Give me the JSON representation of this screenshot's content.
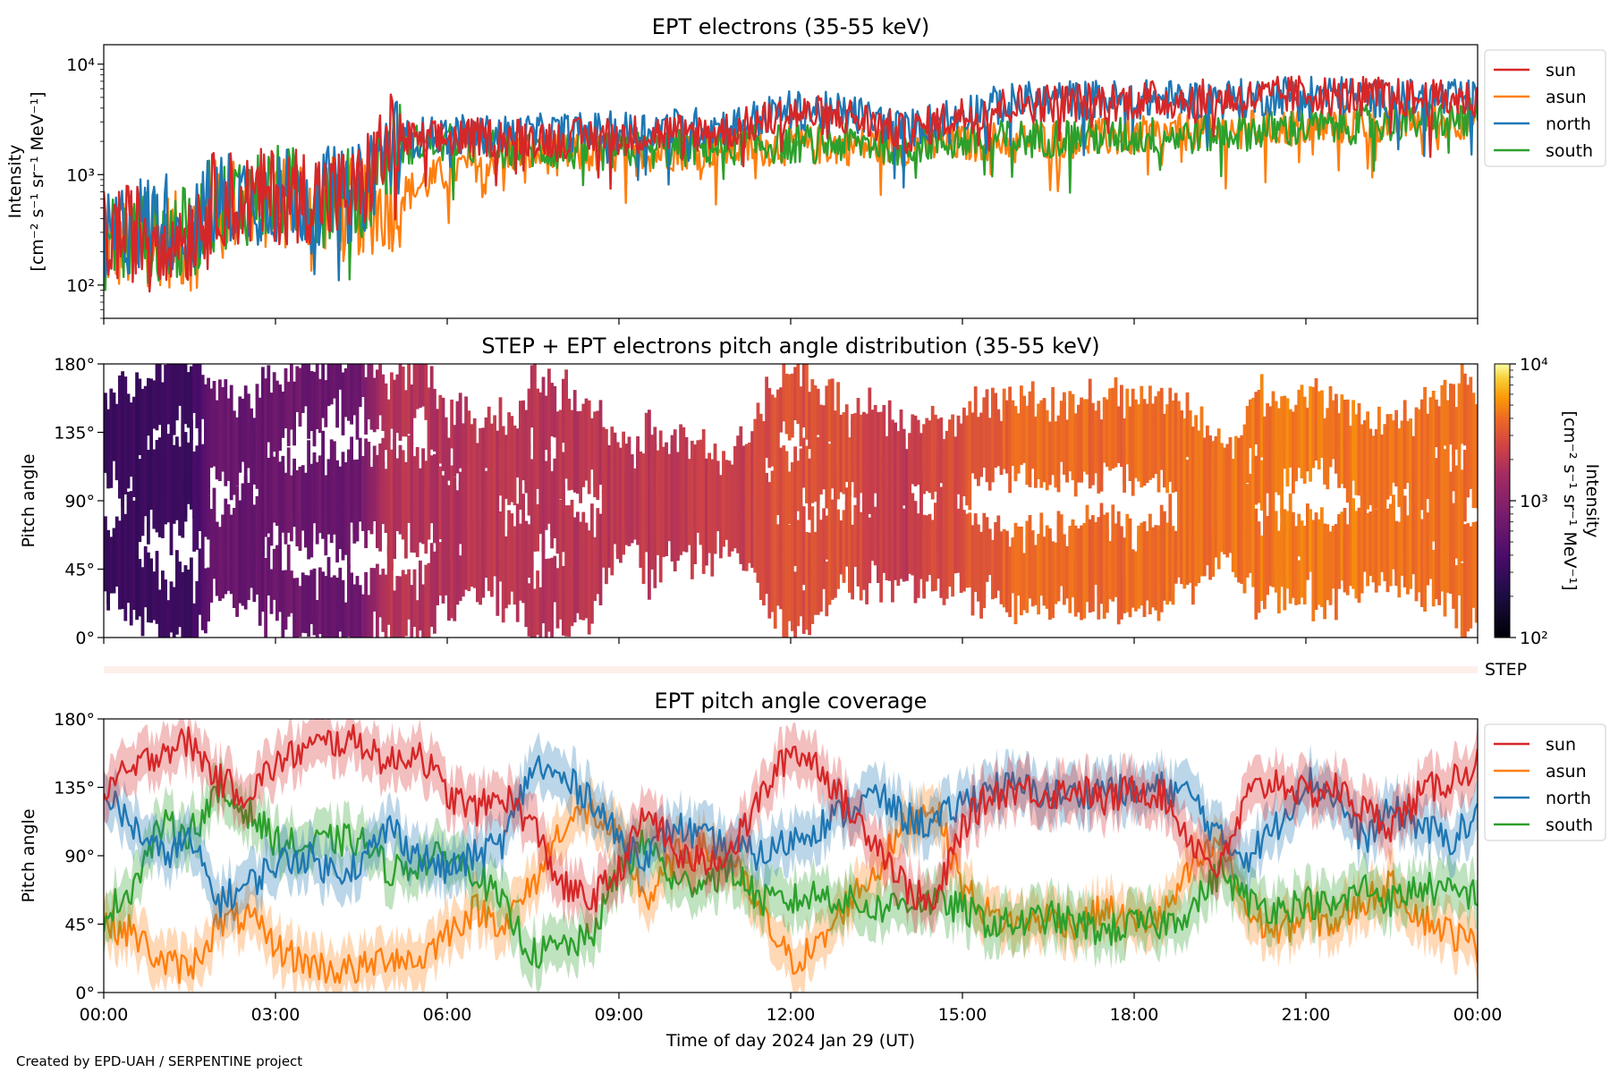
{
  "footer": "Created by EPD-UAH / SERPENTINE project",
  "colors": {
    "sun": "#d62728",
    "asun": "#ff7f0e",
    "north": "#1f77b4",
    "south": "#2ca02c",
    "step_bar": "#fdf0ea"
  },
  "chart_data": [
    {
      "type": "line",
      "title": "EPT electrons (35-55 keV)",
      "ylabel": [
        "Intensity",
        "[cm⁻² s⁻¹ sr⁻¹ MeV⁻¹]"
      ],
      "yscale": "log",
      "ylim": [
        50,
        15000
      ],
      "yticks": [
        100,
        1000,
        10000
      ],
      "ytick_labels": [
        "10²",
        "10³",
        "10⁴"
      ],
      "x_unit": "hours",
      "xlim": [
        0,
        24
      ],
      "legend": {
        "placement": "outside-right-top",
        "entries": [
          "sun",
          "asun",
          "north",
          "south"
        ]
      },
      "series": [
        {
          "name": "sun",
          "color": "#d62728",
          "x": [
            0,
            0.5,
            1,
            1.5,
            2,
            2.5,
            3,
            3.5,
            4,
            4.5,
            5,
            5.5,
            6,
            7,
            8,
            9,
            10,
            11,
            12,
            13,
            14,
            15,
            16,
            17,
            18,
            19,
            20,
            21,
            22,
            23,
            24
          ],
          "y": [
            300,
            330,
            350,
            320,
            700,
            650,
            720,
            750,
            700,
            750,
            2200,
            2100,
            2200,
            2300,
            2200,
            2400,
            2500,
            2600,
            3700,
            3500,
            2400,
            3600,
            4600,
            4700,
            4900,
            5000,
            5100,
            5600,
            5400,
            5000,
            5000
          ]
        },
        {
          "name": "asun",
          "color": "#ff7f0e",
          "x": [
            0,
            0.5,
            1,
            1.5,
            2,
            2.5,
            3,
            3.5,
            4,
            4.5,
            5,
            5.5,
            6,
            7,
            8,
            9,
            10,
            11,
            12,
            13,
            14,
            15,
            16,
            17,
            18,
            19,
            20,
            21,
            22,
            23,
            24
          ],
          "y": [
            260,
            250,
            300,
            260,
            600,
            600,
            650,
            650,
            600,
            550,
            600,
            800,
            1100,
            1600,
            1600,
            1600,
            1700,
            1800,
            1900,
            1900,
            1900,
            2000,
            2200,
            2200,
            2300,
            2500,
            2700,
            2800,
            3000,
            3200,
            3300
          ]
        },
        {
          "name": "north",
          "color": "#1f77b4",
          "x": [
            0,
            0.5,
            1,
            1.5,
            2,
            2.5,
            3,
            3.5,
            4,
            4.5,
            5,
            5.5,
            6,
            7,
            8,
            9,
            10,
            11,
            12,
            13,
            14,
            15,
            16,
            17,
            18,
            19,
            20,
            21,
            22,
            23,
            24
          ],
          "y": [
            250,
            400,
            450,
            380,
            650,
            700,
            700,
            700,
            720,
            750,
            2000,
            2300,
            2400,
            2400,
            2500,
            2600,
            2800,
            2900,
            4000,
            3800,
            2600,
            3800,
            4800,
            5000,
            5000,
            5000,
            5100,
            5800,
            5200,
            5000,
            5000
          ]
        },
        {
          "name": "south",
          "color": "#2ca02c",
          "x": [
            0,
            0.5,
            1,
            1.5,
            2,
            2.5,
            3,
            3.5,
            4,
            4.5,
            5,
            5.5,
            6,
            7,
            8,
            9,
            10,
            11,
            12,
            13,
            14,
            15,
            16,
            17,
            18,
            19,
            20,
            21,
            22,
            23,
            24
          ],
          "y": [
            270,
            300,
            330,
            300,
            650,
            700,
            750,
            700,
            680,
            700,
            1800,
            2000,
            2000,
            1800,
            1700,
            1700,
            1800,
            1900,
            2000,
            2000,
            2000,
            2100,
            2200,
            2300,
            2300,
            2400,
            2600,
            2800,
            3000,
            3200,
            3400
          ]
        }
      ]
    },
    {
      "type": "heatmap",
      "title": "STEP + EPT electrons pitch angle distribution (35-55 keV)",
      "ylabel": "Pitch angle",
      "ylim": [
        0,
        180
      ],
      "yticks": [
        0,
        45,
        90,
        135,
        180
      ],
      "ytick_labels": [
        "0°",
        "45°",
        "90°",
        "135°",
        "180°"
      ],
      "xlim": [
        0,
        24
      ],
      "colorbar": {
        "label": "Intensity",
        "units": "[cm⁻² s⁻¹ sr⁻¹ MeV⁻¹]",
        "scale": "log",
        "range": [
          100,
          10000
        ],
        "tick_labels": [
          "10²",
          "10³",
          "10⁴"
        ],
        "colormap": "inferno"
      },
      "step_label": "STEP"
    },
    {
      "type": "line",
      "title": "EPT pitch angle coverage",
      "ylabel": "Pitch angle",
      "xlabel": "Time of day 2024 Jan 29 (UT)",
      "ylim": [
        0,
        180
      ],
      "yticks": [
        0,
        45,
        90,
        135,
        180
      ],
      "ytick_labels": [
        "0°",
        "45°",
        "90°",
        "135°",
        "180°"
      ],
      "xlim": [
        0,
        24
      ],
      "xticks": [
        0,
        3,
        6,
        9,
        12,
        15,
        18,
        21,
        24
      ],
      "xtick_labels": [
        "00:00",
        "03:00",
        "06:00",
        "09:00",
        "12:00",
        "15:00",
        "18:00",
        "21:00",
        "00:00"
      ],
      "legend": {
        "placement": "outside-right-top",
        "entries": [
          "sun",
          "asun",
          "north",
          "south"
        ]
      },
      "series": [
        {
          "name": "sun",
          "color": "#d62728",
          "x": [
            0,
            0.5,
            1,
            1.5,
            2,
            2.5,
            3,
            3.5,
            4,
            4.5,
            5,
            5.5,
            6,
            6.5,
            7,
            7.5,
            8,
            8.5,
            9,
            9.5,
            10,
            10.5,
            11,
            11.5,
            12,
            12.5,
            13,
            13.5,
            14,
            14.5,
            15,
            15.5,
            16,
            16.5,
            17,
            17.5,
            18,
            18.5,
            19,
            19.5,
            20,
            20.5,
            21,
            21.5,
            22,
            22.5,
            23,
            23.5,
            24
          ],
          "y": [
            135,
            145,
            160,
            165,
            140,
            130,
            150,
            160,
            165,
            165,
            150,
            160,
            130,
            120,
            130,
            110,
            70,
            60,
            80,
            120,
            90,
            85,
            95,
            130,
            160,
            150,
            120,
            100,
            70,
            55,
            110,
            130,
            135,
            130,
            135,
            125,
            135,
            130,
            100,
            80,
            130,
            140,
            130,
            135,
            120,
            110,
            130,
            140,
            150
          ]
        },
        {
          "name": "asun",
          "color": "#ff7f0e",
          "x": [
            0,
            0.5,
            1,
            1.5,
            2,
            2.5,
            3,
            3.5,
            4,
            4.5,
            5,
            5.5,
            6,
            6.5,
            7,
            7.5,
            8,
            8.5,
            9,
            9.5,
            10,
            10.5,
            11,
            11.5,
            12,
            12.5,
            13,
            13.5,
            14,
            14.5,
            15,
            15.5,
            16,
            16.5,
            17,
            17.5,
            18,
            18.5,
            19,
            19.5,
            20,
            20.5,
            21,
            21.5,
            22,
            22.5,
            23,
            23.5,
            24
          ],
          "y": [
            45,
            40,
            20,
            15,
            45,
            50,
            30,
            20,
            15,
            15,
            25,
            20,
            40,
            55,
            45,
            70,
            110,
            120,
            100,
            60,
            90,
            95,
            85,
            50,
            20,
            30,
            60,
            80,
            110,
            125,
            70,
            50,
            45,
            50,
            45,
            55,
            45,
            50,
            80,
            100,
            50,
            40,
            50,
            45,
            60,
            70,
            50,
            40,
            30
          ]
        },
        {
          "name": "north",
          "color": "#1f77b4",
          "x": [
            0,
            0.5,
            1,
            1.5,
            2,
            2.5,
            3,
            3.5,
            4,
            4.5,
            5,
            5.5,
            6,
            6.5,
            7,
            7.5,
            8,
            8.5,
            9,
            9.5,
            10,
            10.5,
            11,
            11.5,
            12,
            12.5,
            13,
            13.5,
            14,
            14.5,
            15,
            15.5,
            16,
            16.5,
            17,
            17.5,
            18,
            18.5,
            19,
            19.5,
            20,
            20.5,
            21,
            21.5,
            22,
            22.5,
            23,
            23.5,
            24
          ],
          "y": [
            130,
            110,
            90,
            100,
            60,
            70,
            85,
            90,
            80,
            85,
            110,
            90,
            80,
            90,
            100,
            150,
            140,
            130,
            100,
            90,
            110,
            100,
            95,
            90,
            100,
            110,
            120,
            130,
            115,
            110,
            125,
            135,
            135,
            130,
            130,
            135,
            130,
            135,
            130,
            100,
            90,
            110,
            140,
            130,
            100,
            120,
            110,
            100,
            115
          ]
        },
        {
          "name": "south",
          "color": "#2ca02c",
          "x": [
            0,
            0.5,
            1,
            1.5,
            2,
            2.5,
            3,
            3.5,
            4,
            4.5,
            5,
            5.5,
            6,
            6.5,
            7,
            7.5,
            8,
            8.5,
            9,
            9.5,
            10,
            10.5,
            11,
            11.5,
            12,
            12.5,
            13,
            13.5,
            14,
            14.5,
            15,
            15.5,
            16,
            16.5,
            17,
            17.5,
            18,
            18.5,
            19,
            19.5,
            20,
            20.5,
            21,
            21.5,
            22,
            22.5,
            23,
            23.5,
            24
          ],
          "y": [
            50,
            70,
            110,
            105,
            130,
            120,
            100,
            95,
            100,
            100,
            80,
            85,
            90,
            80,
            55,
            25,
            30,
            35,
            80,
            100,
            70,
            75,
            80,
            60,
            60,
            65,
            60,
            55,
            60,
            60,
            55,
            45,
            45,
            50,
            45,
            40,
            45,
            45,
            55,
            80,
            60,
            55,
            60,
            55,
            70,
            60,
            70,
            65,
            65
          ]
        }
      ]
    }
  ]
}
